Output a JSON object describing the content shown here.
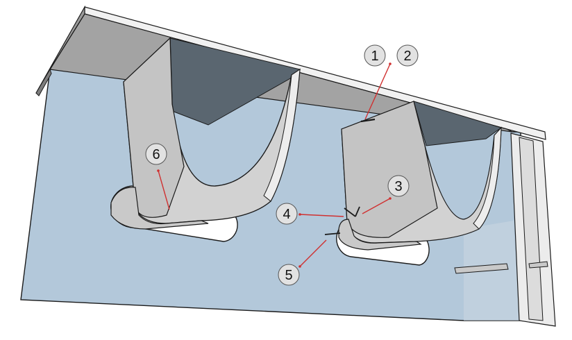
{
  "callouts": [
    {
      "id": "1",
      "label": "1"
    },
    {
      "id": "2",
      "label": "2"
    },
    {
      "id": "3",
      "label": "3"
    },
    {
      "id": "4",
      "label": "4"
    },
    {
      "id": "5",
      "label": "5"
    },
    {
      "id": "6",
      "label": "6"
    }
  ],
  "colors": {
    "web_plate": "#b3c8da",
    "flange": "#a0a0a0",
    "bracket_face": "#cdcdcd",
    "bracket_side": "#c2c2c2",
    "dark_opening": "#5a6670",
    "outline": "#1a1a1a",
    "leader": "#d03030",
    "bubble": "#e2e2e2"
  }
}
